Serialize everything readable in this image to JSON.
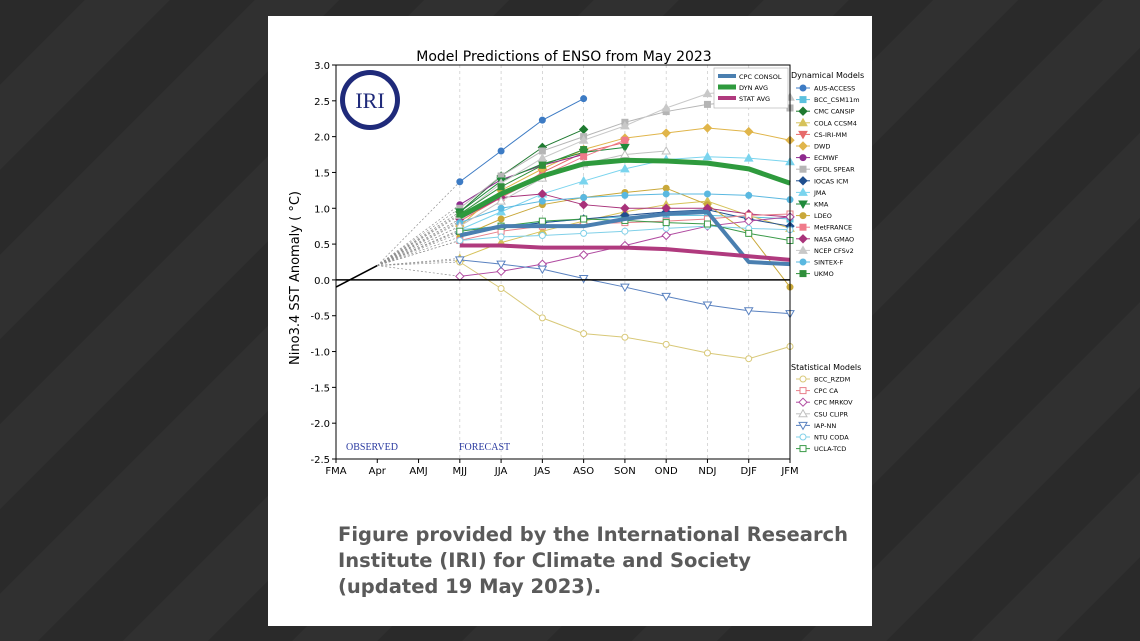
{
  "caption": {
    "line1": "Figure provided by the International Research",
    "line2": "Institute (IRI) for Climate and Society",
    "line3": "(updated 19 May 2023)."
  },
  "logo_text": "IRI",
  "chart_data": {
    "type": "line",
    "title": "Model Predictions of ENSO from May 2023",
    "ylabel": "Nino3.4 SST Anomaly ( °C)",
    "xlabel": "",
    "categories": [
      "FMA",
      "Apr",
      "AMJ",
      "MJJ",
      "JJA",
      "JAS",
      "ASO",
      "SON",
      "OND",
      "NDJ",
      "DJF",
      "JFM"
    ],
    "ylim": [
      -2.5,
      3.0
    ],
    "yticks": [
      3.0,
      2.5,
      2.0,
      1.5,
      1.0,
      0.5,
      0.0,
      -0.5,
      -1.0,
      -1.5,
      -2.0,
      -2.5
    ],
    "annotations": {
      "observed": "OBSERVED",
      "forecast": "FORECAST"
    },
    "observed": {
      "x": [
        "FMA",
        "Apr"
      ],
      "values": [
        -0.1,
        0.2
      ]
    },
    "legend_dynamical_title": "Dynamical Models",
    "legend_statistical_title": "Statistical Models",
    "consensus": [
      {
        "name": "CPC CONSOL",
        "color": "#4a7fb0",
        "width": 4,
        "values": [
          0.62,
          0.75,
          0.75,
          0.75,
          0.85,
          0.92,
          0.95,
          0.25,
          0.22
        ]
      },
      {
        "name": "DYN AVG",
        "color": "#2e9a3d",
        "width": 5,
        "values": [
          0.88,
          1.2,
          1.45,
          1.62,
          1.67,
          1.66,
          1.63,
          1.55,
          1.35
        ]
      },
      {
        "name": "STAT AVG",
        "color": "#b03a7e",
        "width": 4,
        "values": [
          0.48,
          0.48,
          0.45,
          0.45,
          0.45,
          0.43,
          0.38,
          0.33,
          0.28
        ]
      }
    ],
    "dynamical": [
      {
        "name": "AUS-ACCESS",
        "color": "#3d7bc4",
        "marker": "circle",
        "values": [
          1.37,
          1.8,
          2.23,
          2.53,
          null,
          null,
          null,
          null,
          null
        ]
      },
      {
        "name": "BCC_CSM11m",
        "color": "#5bc0de",
        "marker": "square",
        "values": [
          0.7,
          0.75,
          0.8,
          0.85,
          0.88,
          0.9,
          0.9,
          0.88,
          0.85
        ]
      },
      {
        "name": "CMC CANSIP",
        "color": "#1f7a30",
        "marker": "diamond",
        "values": [
          0.95,
          1.45,
          1.85,
          2.1,
          null,
          null,
          null,
          null,
          null
        ]
      },
      {
        "name": "COLA CCSM4",
        "color": "#d6c25a",
        "marker": "triangle-up",
        "values": [
          0.3,
          0.52,
          0.68,
          0.82,
          0.95,
          1.05,
          1.1,
          0.9,
          0.72
        ]
      },
      {
        "name": "CS-IRI-MM",
        "color": "#e66a6a",
        "marker": "triangle-down",
        "values": [
          0.82,
          1.15,
          1.5,
          1.78,
          1.92,
          null,
          null,
          null,
          null
        ]
      },
      {
        "name": "DWD",
        "color": "#e0b54a",
        "marker": "diamond",
        "values": [
          0.75,
          1.25,
          1.55,
          1.82,
          1.98,
          2.05,
          2.12,
          2.07,
          1.95
        ]
      },
      {
        "name": "ECMWF",
        "color": "#8e2a8e",
        "marker": "circle",
        "values": [
          1.05,
          1.4,
          1.6,
          1.75,
          null,
          null,
          null,
          null,
          null
        ]
      },
      {
        "name": "GFDL SPEAR",
        "color": "#b5b5b5",
        "marker": "square",
        "values": [
          1.0,
          1.45,
          1.8,
          2.0,
          2.2,
          2.35,
          2.45,
          2.5,
          2.4
        ]
      },
      {
        "name": "IOCAS ICM",
        "color": "#1f4f8f",
        "marker": "diamond",
        "values": [
          0.65,
          0.72,
          0.8,
          0.85,
          0.9,
          0.95,
          0.98,
          0.85,
          0.75
        ]
      },
      {
        "name": "JMA",
        "color": "#7ad4ee",
        "marker": "triangle-up",
        "values": [
          0.7,
          0.95,
          1.2,
          1.38,
          1.55,
          1.68,
          1.72,
          1.7,
          1.65
        ]
      },
      {
        "name": "KMA",
        "color": "#1f8a3a",
        "marker": "triangle-down",
        "values": [
          0.95,
          1.38,
          1.62,
          1.78,
          1.85,
          null,
          null,
          null,
          null
        ]
      },
      {
        "name": "LDEO",
        "color": "#c9a83a",
        "marker": "circle",
        "values": [
          0.6,
          0.85,
          1.05,
          1.15,
          1.22,
          1.28,
          1.05,
          0.65,
          -0.1
        ]
      },
      {
        "name": "MetFRANCE",
        "color": "#f07a8a",
        "marker": "square",
        "values": [
          0.85,
          1.15,
          1.45,
          1.72,
          1.95,
          null,
          null,
          null,
          null
        ]
      },
      {
        "name": "NASA GMAO",
        "color": "#a8327a",
        "marker": "diamond",
        "values": [
          0.85,
          1.15,
          1.2,
          1.05,
          1.0,
          1.0,
          1.0,
          0.92,
          0.88
        ]
      },
      {
        "name": "NCEP CFSv2",
        "color": "#c8c8c8",
        "marker": "triangle-up",
        "values": [
          0.9,
          1.35,
          1.7,
          1.95,
          2.15,
          2.4,
          2.6,
          2.65,
          2.55
        ]
      },
      {
        "name": "SINTEX-F",
        "color": "#5ab8e0",
        "marker": "circle",
        "values": [
          0.8,
          1.0,
          1.1,
          1.15,
          1.18,
          1.2,
          1.2,
          1.18,
          1.12
        ]
      },
      {
        "name": "UKMO",
        "color": "#2f8f3a",
        "marker": "square",
        "values": [
          0.92,
          1.3,
          1.6,
          1.82,
          null,
          null,
          null,
          null,
          null
        ]
      }
    ],
    "statistical": [
      {
        "name": "BCC_RZDM",
        "color": "#d8c878",
        "marker": "circle-open",
        "values": [
          0.25,
          -0.12,
          -0.53,
          -0.75,
          -0.8,
          -0.9,
          -1.02,
          -1.1,
          -0.93
        ]
      },
      {
        "name": "CPC CA",
        "color": "#e8808a",
        "marker": "square-open",
        "values": [
          0.55,
          0.68,
          0.75,
          0.78,
          0.8,
          0.82,
          0.85,
          0.9,
          0.92
        ]
      },
      {
        "name": "CPC MRKOV",
        "color": "#b04aa0",
        "marker": "diamond-open",
        "values": [
          0.05,
          0.12,
          0.22,
          0.35,
          0.48,
          0.62,
          0.75,
          0.82,
          0.88
        ]
      },
      {
        "name": "CSU CLIPR",
        "color": "#c0c0c0",
        "marker": "triangle-up-open",
        "values": [
          0.75,
          1.1,
          1.42,
          1.62,
          1.75,
          1.8,
          null,
          null,
          null
        ]
      },
      {
        "name": "IAP-NN",
        "color": "#5a82c0",
        "marker": "triangle-down-open",
        "values": [
          0.28,
          0.22,
          0.15,
          0.02,
          -0.1,
          -0.23,
          -0.35,
          -0.43,
          -0.47
        ]
      },
      {
        "name": "NTU CODA",
        "color": "#80d0e8",
        "marker": "circle-open",
        "values": [
          0.55,
          0.6,
          0.62,
          0.65,
          0.68,
          0.72,
          0.75,
          0.72,
          0.7
        ]
      },
      {
        "name": "UCLA-TCD",
        "color": "#3a9a48",
        "marker": "square-open",
        "values": [
          0.68,
          0.75,
          0.82,
          0.85,
          0.83,
          0.8,
          0.78,
          0.65,
          0.55
        ]
      }
    ]
  }
}
